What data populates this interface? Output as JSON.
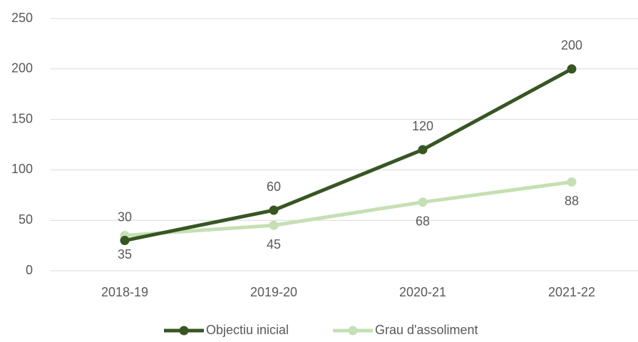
{
  "chart_data": {
    "type": "line",
    "categories": [
      "2018-19",
      "2019-20",
      "2020-21",
      "2021-22"
    ],
    "series": [
      {
        "name": "Objectiu inicial",
        "color": "#375623",
        "values": [
          30,
          60,
          120,
          200
        ]
      },
      {
        "name": "Grau d'assoliment",
        "color": "#c5e0b4",
        "values": [
          35,
          45,
          68,
          88
        ]
      }
    ],
    "ylim": [
      0,
      250
    ],
    "yticks": [
      0,
      50,
      100,
      150,
      200,
      250
    ],
    "grid": true,
    "legend": "bottom"
  }
}
